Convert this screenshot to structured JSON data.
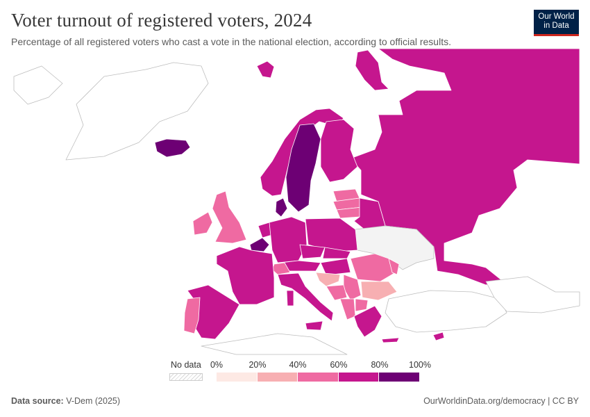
{
  "title": "Voter turnout of registered voters, 2024",
  "subtitle": "Percentage of all registered voters who cast a vote in the national election, according to official results.",
  "logo": {
    "line1": "Our World",
    "line2": "in Data"
  },
  "legend": {
    "no_data_label": "No data",
    "ticks": [
      "0%",
      "20%",
      "40%",
      "60%",
      "80%",
      "100%"
    ],
    "bins": [
      {
        "range": "0-20%",
        "color": "#fde9e4"
      },
      {
        "range": "20-40%",
        "color": "#f7afb2"
      },
      {
        "range": "40-60%",
        "color": "#ef6aa2"
      },
      {
        "range": "60-80%",
        "color": "#c5168e"
      },
      {
        "range": "80-100%",
        "color": "#6d0074"
      }
    ]
  },
  "colors": {
    "no_data": "#ffffff",
    "border": "#ffffff",
    "outline": "#bdbdbd"
  },
  "footer": {
    "source_label": "Data source:",
    "source_value": "V-Dem (2025)",
    "url": "OurWorldinData.org/democracy | CC BY"
  }
}
